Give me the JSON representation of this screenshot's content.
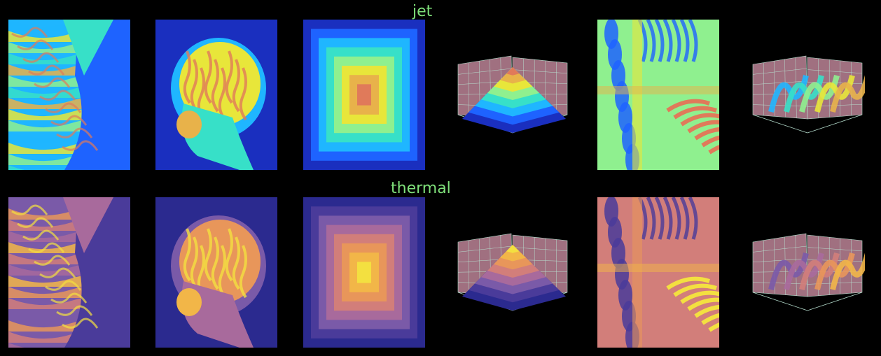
{
  "rows": [
    {
      "title": "jet",
      "colormap": "jet",
      "palette": [
        "#1a2fbf",
        "#1e63ff",
        "#1fb6ff",
        "#37e0c8",
        "#8ff08f",
        "#e8e63a",
        "#e8b24a",
        "#e07a5a"
      ],
      "tiles": [
        "terrain-image",
        "mri-head-image",
        "concentric-squares-image",
        "pyramid-surface-3d",
        "interference-pattern-image",
        "wave-surface-3d"
      ]
    },
    {
      "title": "thermal",
      "colormap": "thermal",
      "palette": [
        "#2b2a8f",
        "#4a3b9a",
        "#7a5aa8",
        "#a86a9c",
        "#d27e7a",
        "#e8965a",
        "#f2b648",
        "#f3e040"
      ],
      "tiles": [
        "terrain-image",
        "mri-head-image",
        "concentric-squares-image",
        "pyramid-surface-3d",
        "interference-pattern-image",
        "wave-surface-3d"
      ]
    }
  ],
  "colors": {
    "background": "#000000",
    "title_text": "#7fe07a",
    "axes_pane": "#a07080",
    "grid": "#b8e0d0"
  }
}
